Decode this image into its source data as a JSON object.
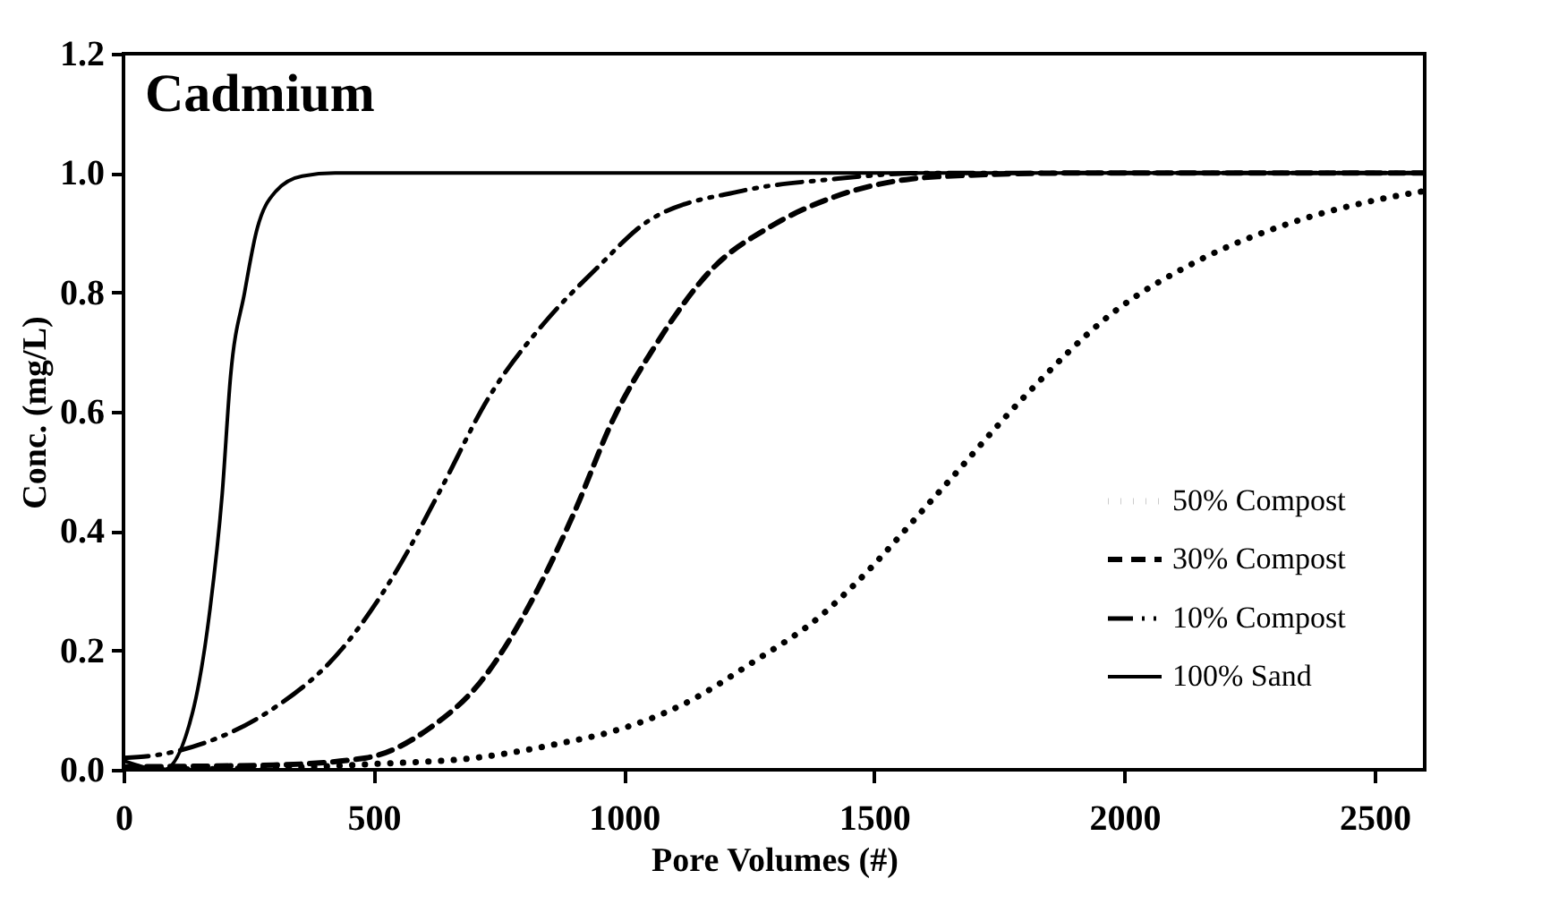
{
  "chart_data": {
    "type": "line",
    "title": "Cadmium",
    "xlabel": "Pore Volumes (#)",
    "ylabel": "Conc. (mg/L)",
    "xlim": [
      0,
      2600
    ],
    "xticks": [
      0,
      500,
      1000,
      1500,
      2000,
      2500
    ],
    "ylim": [
      0,
      1.2
    ],
    "yticks": [
      {
        "value": 0,
        "label": "0.0"
      },
      {
        "value": 0.2,
        "label": "0.2"
      },
      {
        "value": 0.4,
        "label": "0.4"
      },
      {
        "value": 0.6,
        "label": "0.6"
      },
      {
        "value": 0.8,
        "label": "0.8"
      },
      {
        "value": 1.0,
        "label": "1.0"
      },
      {
        "value": 1.2,
        "label": "1.2"
      }
    ],
    "grid": false,
    "legend": "bottom right",
    "marker": "none",
    "series": [
      {
        "name": "50% Compost",
        "color": "#000000",
        "line_style": "dotted",
        "x": [
          0,
          300,
          508,
          703,
          876,
          980,
          1119,
          1257,
          1396,
          1454,
          1628,
          1801,
          1974,
          2147,
          2320,
          2504,
          2600
        ],
        "values": [
          0.0,
          0.003,
          0.01,
          0.02,
          0.045,
          0.065,
          0.11,
          0.18,
          0.26,
          0.305,
          0.464,
          0.626,
          0.764,
          0.853,
          0.913,
          0.955,
          0.97
        ]
      },
      {
        "name": "30% Compost",
        "color": "#000000",
        "line_style": "dashed",
        "x": [
          0,
          300,
          485,
          612,
          716,
          820,
          900,
          980,
          1062,
          1177,
          1292,
          1420,
          1628,
          1900,
          2600
        ],
        "values": [
          0.005,
          0.008,
          0.02,
          0.07,
          0.15,
          0.29,
          0.43,
          0.59,
          0.71,
          0.84,
          0.91,
          0.96,
          0.994,
          1.0,
          1.0
        ]
      },
      {
        "name": "10% Compost",
        "color": "#000000",
        "line_style": "dashdot",
        "x": [
          0,
          69,
          162,
          287,
          438,
          543,
          634,
          727,
          842,
          945,
          1049,
          1235,
          1420,
          1600,
          2600
        ],
        "values": [
          0.02,
          0.025,
          0.045,
          0.096,
          0.204,
          0.33,
          0.47,
          0.62,
          0.75,
          0.84,
          0.92,
          0.97,
          0.99,
          1.0,
          1.0
        ]
      },
      {
        "name": "100% Sand",
        "color": "#000000",
        "line_style": "solid",
        "x": [
          0,
          80,
          138,
          173,
          197,
          214,
          242,
          265,
          305,
          357,
          423,
          2600
        ],
        "values": [
          0.015,
          0.0,
          0.096,
          0.27,
          0.46,
          0.66,
          0.8,
          0.9,
          0.97,
          0.995,
          1.0,
          1.0
        ]
      }
    ]
  }
}
